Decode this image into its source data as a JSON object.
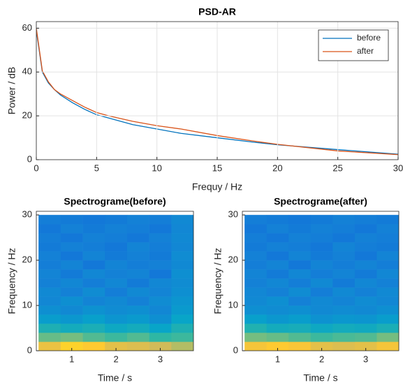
{
  "chart_data": [
    {
      "type": "line",
      "title": "PSD-AR",
      "xlabel": "Frequy / Hz",
      "ylabel": "Power / dB",
      "x": [
        0,
        0.5,
        1,
        1.5,
        2,
        3,
        4,
        5,
        6,
        8,
        10,
        12,
        15,
        18,
        20,
        25,
        30
      ],
      "series": [
        {
          "name": "before",
          "color": "#0072bd",
          "values": [
            59,
            40,
            35,
            32,
            29.5,
            26,
            23,
            20.5,
            19,
            16,
            14,
            12,
            10,
            8,
            6.8,
            4.6,
            2.5
          ]
        },
        {
          "name": "after",
          "color": "#d95319",
          "values": [
            60,
            40.5,
            35.5,
            32,
            30,
            27,
            24,
            21.5,
            20,
            17.5,
            15.5,
            14,
            11,
            8.5,
            7,
            4,
            2.3
          ]
        }
      ],
      "xlim": [
        0,
        30
      ],
      "xticks": [
        0,
        5,
        10,
        15,
        20,
        25,
        30
      ],
      "ylim": [
        0,
        63
      ],
      "yticks": [
        0,
        20,
        40,
        60
      ],
      "grid": true,
      "legend": "upper right"
    },
    {
      "type": "heatmap",
      "title": "Spectrograme(before)",
      "xlabel": "Time / s",
      "ylabel": "Frequency / Hz",
      "x_edges": [
        0.25,
        0.75,
        1.25,
        1.75,
        2.25,
        2.75,
        3.25,
        3.75
      ],
      "y_edges": [
        0,
        2,
        4,
        6,
        8,
        10,
        12,
        14,
        16,
        18,
        20,
        22,
        24,
        26,
        28,
        30
      ],
      "z": [
        [
          0.82,
          0.9,
          0.88,
          0.8,
          0.78,
          0.75,
          0.7
        ],
        [
          0.58,
          0.6,
          0.55,
          0.52,
          0.55,
          0.5,
          0.52
        ],
        [
          0.45,
          0.42,
          0.44,
          0.4,
          0.42,
          0.38,
          0.45
        ],
        [
          0.35,
          0.33,
          0.36,
          0.32,
          0.34,
          0.3,
          0.38
        ],
        [
          0.3,
          0.28,
          0.31,
          0.29,
          0.3,
          0.27,
          0.34
        ],
        [
          0.27,
          0.3,
          0.26,
          0.28,
          0.25,
          0.29,
          0.32
        ],
        [
          0.28,
          0.25,
          0.29,
          0.24,
          0.28,
          0.26,
          0.3
        ],
        [
          0.25,
          0.27,
          0.24,
          0.27,
          0.23,
          0.27,
          0.29
        ],
        [
          0.26,
          0.23,
          0.27,
          0.25,
          0.26,
          0.22,
          0.3
        ],
        [
          0.24,
          0.26,
          0.22,
          0.26,
          0.24,
          0.25,
          0.28
        ],
        [
          0.25,
          0.22,
          0.26,
          0.23,
          0.25,
          0.23,
          0.29
        ],
        [
          0.23,
          0.25,
          0.24,
          0.22,
          0.26,
          0.24,
          0.27
        ],
        [
          0.24,
          0.22,
          0.25,
          0.24,
          0.22,
          0.25,
          0.28
        ],
        [
          0.22,
          0.25,
          0.23,
          0.25,
          0.24,
          0.22,
          0.27
        ],
        [
          0.24,
          0.23,
          0.22,
          0.23,
          0.25,
          0.24,
          0.28
        ]
      ],
      "zlim": [
        0,
        1
      ],
      "colormap": [
        "#352a87",
        "#0f5cdd",
        "#1481d6",
        "#06a4ca",
        "#2eb7a4",
        "#87bf77",
        "#d1bb59",
        "#fec832",
        "#f9fb0e"
      ],
      "xlim": [
        0.2,
        3.75
      ],
      "xticks": [
        1,
        2,
        3
      ],
      "ylim": [
        0,
        30.8
      ],
      "yticks": [
        0,
        10,
        20,
        30
      ]
    },
    {
      "type": "heatmap",
      "title": "Spectrograme(after)",
      "xlabel": "Time / s",
      "ylabel": "Frequency / Hz",
      "x_edges": [
        0.25,
        0.75,
        1.25,
        1.75,
        2.25,
        2.75,
        3.25,
        3.75
      ],
      "y_edges": [
        0,
        2,
        4,
        6,
        8,
        10,
        12,
        14,
        16,
        18,
        20,
        22,
        24,
        26,
        28,
        30
      ],
      "z": [
        [
          0.85,
          0.88,
          0.86,
          0.8,
          0.78,
          0.8,
          0.85
        ],
        [
          0.6,
          0.58,
          0.55,
          0.52,
          0.54,
          0.55,
          0.6
        ],
        [
          0.46,
          0.42,
          0.43,
          0.4,
          0.42,
          0.41,
          0.44
        ],
        [
          0.36,
          0.33,
          0.35,
          0.31,
          0.33,
          0.32,
          0.35
        ],
        [
          0.3,
          0.29,
          0.3,
          0.28,
          0.29,
          0.28,
          0.3
        ],
        [
          0.28,
          0.3,
          0.25,
          0.28,
          0.26,
          0.29,
          0.27
        ],
        [
          0.27,
          0.25,
          0.29,
          0.24,
          0.28,
          0.25,
          0.28
        ],
        [
          0.25,
          0.27,
          0.24,
          0.28,
          0.23,
          0.27,
          0.25
        ],
        [
          0.26,
          0.23,
          0.27,
          0.24,
          0.26,
          0.23,
          0.27
        ],
        [
          0.24,
          0.26,
          0.22,
          0.26,
          0.24,
          0.26,
          0.24
        ],
        [
          0.25,
          0.22,
          0.26,
          0.23,
          0.25,
          0.22,
          0.26
        ],
        [
          0.23,
          0.25,
          0.24,
          0.22,
          0.26,
          0.24,
          0.23
        ],
        [
          0.24,
          0.22,
          0.25,
          0.24,
          0.22,
          0.25,
          0.24
        ],
        [
          0.22,
          0.25,
          0.23,
          0.25,
          0.24,
          0.22,
          0.25
        ],
        [
          0.24,
          0.23,
          0.22,
          0.23,
          0.25,
          0.24,
          0.23
        ]
      ],
      "zlim": [
        0,
        1
      ],
      "colormap": [
        "#352a87",
        "#0f5cdd",
        "#1481d6",
        "#06a4ca",
        "#2eb7a4",
        "#87bf77",
        "#d1bb59",
        "#fec832",
        "#f9fb0e"
      ],
      "xlim": [
        0.2,
        3.75
      ],
      "xticks": [
        1,
        2,
        3
      ],
      "ylim": [
        0,
        30.8
      ],
      "yticks": [
        0,
        10,
        20,
        30
      ]
    }
  ]
}
